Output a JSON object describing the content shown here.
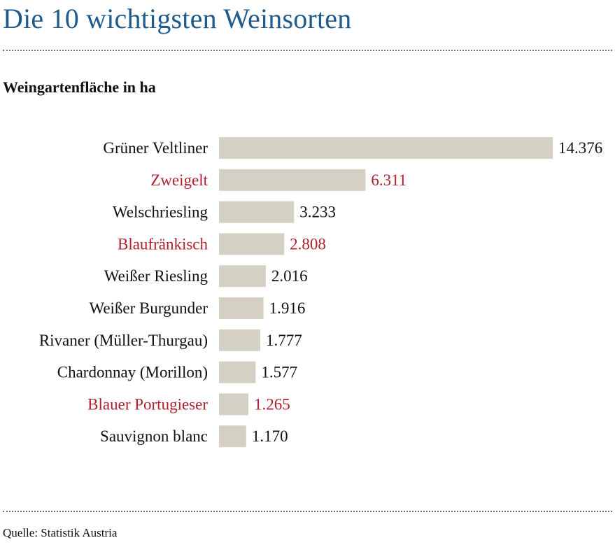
{
  "header": {
    "title": "Die 10 wichtigsten Weinsorten",
    "subtitle": "Weingartenfläche in ha"
  },
  "footer": {
    "source": "Quelle: Statistik Austria"
  },
  "colors": {
    "title": "#1f5a8c",
    "bar": "#d4d0c4",
    "text": "#111111",
    "highlight": "#b0202e"
  },
  "chart_data": {
    "type": "bar",
    "orientation": "horizontal",
    "categories": [
      "Grüner Veltliner",
      "Zweigelt",
      "Welschriesling",
      "Blaufränkisch",
      "Weißer Riesling",
      "Weißer Burgunder",
      "Rivaner (Müller-Thurgau)",
      "Chardonnay (Morillon)",
      "Blauer Portugieser",
      "Sauvignon blanc"
    ],
    "values": [
      14376,
      6311,
      3233,
      2808,
      2016,
      1916,
      1777,
      1577,
      1265,
      1170
    ],
    "value_labels": [
      "14.376",
      "6.311",
      "3.233",
      "2.808",
      "2.016",
      "1.916",
      "1.777",
      "1.577",
      "1.265",
      "1.170"
    ],
    "highlighted": [
      false,
      true,
      false,
      true,
      false,
      false,
      false,
      false,
      true,
      false
    ],
    "xlabel": "",
    "ylabel": "",
    "xlim": [
      0,
      14376
    ],
    "grid": false,
    "legend": "none"
  }
}
